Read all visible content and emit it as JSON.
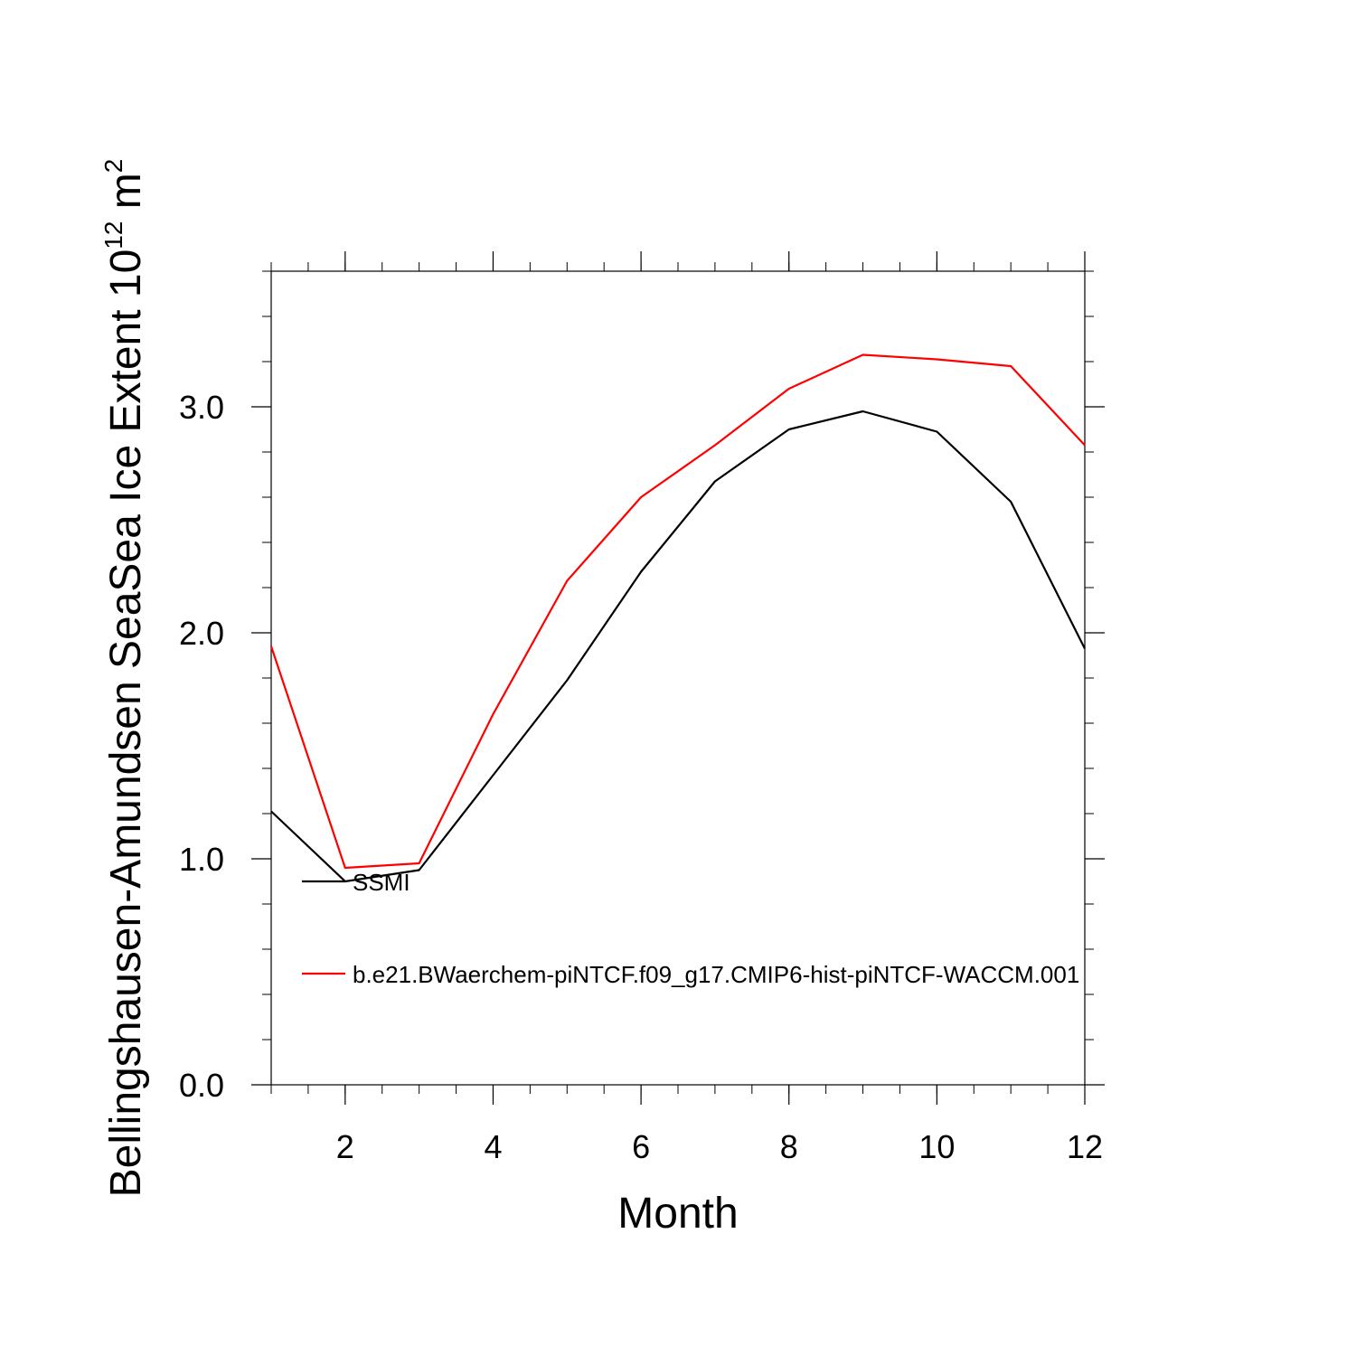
{
  "chart_data": {
    "type": "line",
    "xlabel": "Month",
    "ylabel": "Bellingshausen-Amundsen SeaSea Ice Extent 10",
    "ylabel_sup": "12",
    "ylabel_unit": "m",
    "ylabel_unit_sup": "2",
    "xlim": [
      1,
      12
    ],
    "ylim": [
      0,
      3.6
    ],
    "x_ticks": [
      2,
      4,
      6,
      8,
      10,
      12
    ],
    "x_tick_labels": [
      "2",
      "4",
      "6",
      "8",
      "10",
      "12"
    ],
    "y_ticks": [
      0,
      1,
      2,
      3
    ],
    "y_tick_labels": [
      "0.0",
      "1.0",
      "2.0",
      "3.0"
    ],
    "x": [
      1,
      2,
      3,
      4,
      5,
      6,
      7,
      8,
      9,
      10,
      11,
      12
    ],
    "series": [
      {
        "name": "SSMI",
        "color": "#000000",
        "values": [
          1.21,
          0.9,
          0.95,
          1.37,
          1.79,
          2.27,
          2.67,
          2.9,
          2.98,
          2.89,
          2.58,
          1.93
        ]
      },
      {
        "name": "b.e21.BWaerchem-piNTCF.f09_g17.CMIP6-hist-piNTCF-WACCM.001",
        "color": "#ff0000",
        "values": [
          1.94,
          0.96,
          0.98,
          1.64,
          2.23,
          2.6,
          2.83,
          3.08,
          3.23,
          3.21,
          3.18,
          2.83
        ]
      }
    ],
    "grid": false,
    "legend_position": "inside lower-left"
  }
}
